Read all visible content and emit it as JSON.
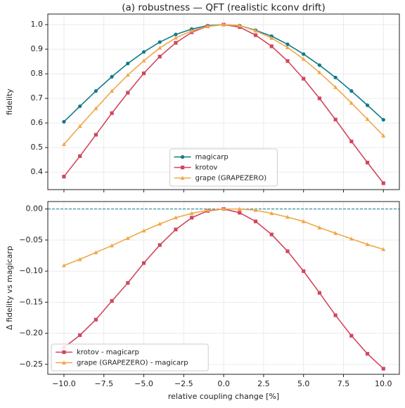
{
  "chart_data": [
    {
      "type": "line",
      "title": "(a) robustness — QFT (realistic kconv drift)",
      "y_label": "fidelity",
      "x": [
        -10,
        -9,
        -8,
        -7,
        -6,
        -5,
        -4,
        -3,
        -2,
        -1,
        0,
        1,
        2,
        3,
        4,
        5,
        6,
        7,
        8,
        9,
        10
      ],
      "series": [
        {
          "name": "magicarp",
          "color": "#0f7a8a",
          "marker": "circle",
          "values": [
            0.605,
            0.668,
            0.73,
            0.788,
            0.842,
            0.889,
            0.929,
            0.96,
            0.982,
            0.996,
            1.0,
            0.996,
            0.977,
            0.953,
            0.92,
            0.88,
            0.835,
            0.785,
            0.73,
            0.672,
            0.613
          ]
        },
        {
          "name": "krotov",
          "color": "#d0475e",
          "marker": "square",
          "values": [
            0.382,
            0.465,
            0.552,
            0.64,
            0.723,
            0.802,
            0.87,
            0.926,
            0.969,
            0.993,
            1.0,
            0.99,
            0.957,
            0.912,
            0.852,
            0.78,
            0.7,
            0.614,
            0.525,
            0.439,
            0.355
          ]
        },
        {
          "name": "grape (GRAPEZERO)",
          "color": "#f0a848",
          "marker": "triangle",
          "values": [
            0.513,
            0.587,
            0.659,
            0.73,
            0.795,
            0.853,
            0.905,
            0.946,
            0.975,
            0.993,
            1.0,
            0.996,
            0.975,
            0.945,
            0.907,
            0.86,
            0.805,
            0.745,
            0.681,
            0.615,
            0.548
          ]
        }
      ],
      "xlim": [
        -11.01,
        11.0
      ],
      "ylim": [
        0.329,
        1.043
      ],
      "yticks": [
        0.4,
        0.5,
        0.6,
        0.7,
        0.8,
        0.9,
        {
          "value": 1,
          "label": "1.0"
        }
      ],
      "grid": true,
      "legend": "lower center"
    },
    {
      "type": "line",
      "x_label": "relative coupling change [%]",
      "y_label": "Δ fidelity vs magicarp",
      "x": [
        -10,
        -9,
        -8,
        -7,
        -6,
        -5,
        -4,
        -3,
        -2,
        -1,
        0,
        1,
        2,
        3,
        4,
        5,
        6,
        7,
        8,
        9,
        10
      ],
      "series": [
        {
          "name": "krotov - magicarp",
          "color": "#d0475e",
          "marker": "square",
          "values": [
            -0.223,
            -0.203,
            -0.178,
            -0.148,
            -0.119,
            -0.087,
            -0.058,
            -0.033,
            -0.014,
            -0.003,
            0,
            -0.006,
            -0.02,
            -0.041,
            -0.068,
            -0.1,
            -0.135,
            -0.171,
            -0.204,
            -0.233,
            -0.257
          ]
        },
        {
          "name": "grape (GRAPEZERO) - magicarp",
          "color": "#f0a848",
          "marker": "triangle",
          "values": [
            -0.091,
            -0.081,
            -0.07,
            -0.059,
            -0.047,
            -0.035,
            -0.024,
            -0.014,
            -0.007,
            -0.002,
            0,
            0.0,
            -0.002,
            -0.007,
            -0.013,
            -0.02,
            -0.03,
            -0.039,
            -0.048,
            -0.057,
            -0.065
          ]
        }
      ],
      "reference_line": {
        "value": 0,
        "color": "#0f7a8a"
      },
      "xlim": [
        -11.01,
        11.0
      ],
      "ylim": [
        -0.266,
        0.012
      ],
      "xticks": [
        {
          "value": -10,
          "label": "−10.0"
        },
        {
          "value": -7.5,
          "label": "−7.5"
        },
        {
          "value": -5,
          "label": "−5.0"
        },
        {
          "value": -2.5,
          "label": "−2.5"
        },
        {
          "value": 0,
          "label": "0.0"
        },
        {
          "value": 2.5,
          "label": "2.5"
        },
        {
          "value": 5,
          "label": "5.0"
        },
        {
          "value": 7.5,
          "label": "7.5"
        },
        {
          "value": 10,
          "label": "10.0"
        }
      ],
      "yticks": [
        {
          "value": 0,
          "label": "0.00"
        },
        {
          "value": -0.05,
          "label": "−0.05"
        },
        {
          "value": -0.1,
          "label": "−0.10"
        },
        {
          "value": -0.15,
          "label": "−0.15"
        },
        {
          "value": -0.2,
          "label": "−0.20"
        },
        {
          "value": -0.25,
          "label": "−0.25"
        }
      ],
      "grid": true,
      "legend": "lower left"
    }
  ]
}
